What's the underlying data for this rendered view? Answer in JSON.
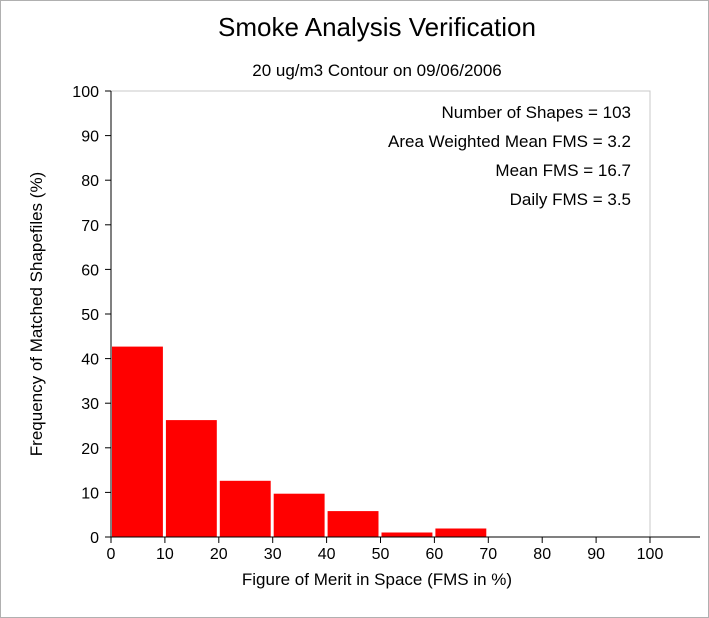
{
  "chart_data": {
    "type": "bar",
    "title": "Smoke Analysis Verification",
    "subtitle": "20 ug/m3 Contour on 09/06/2006",
    "xlabel": "Figure of Merit in Space (FMS in %)",
    "ylabel": "Frequency of Matched Shapefiles (%)",
    "xlim": [
      0,
      110
    ],
    "ylim": [
      0,
      100
    ],
    "x_ticks": [
      "0",
      "10",
      "20",
      "30",
      "40",
      "50",
      "60",
      "70",
      "80",
      "90",
      "100"
    ],
    "y_ticks": [
      "0",
      "10",
      "20",
      "30",
      "40",
      "50",
      "60",
      "70",
      "80",
      "90",
      "100"
    ],
    "bin_width": 10,
    "bin_starts": [
      0,
      10,
      20,
      30,
      40,
      50,
      60,
      70,
      80,
      90,
      100
    ],
    "values": [
      42.7,
      26.2,
      12.6,
      9.7,
      5.8,
      1.0,
      1.9,
      0,
      0,
      0,
      0
    ],
    "bar_color": "#ff0000",
    "grid": false,
    "annotations": [
      "Number of Shapes = 103",
      "Area Weighted Mean FMS = 3.2",
      "Mean FMS = 16.7",
      "Daily FMS = 3.5"
    ]
  }
}
